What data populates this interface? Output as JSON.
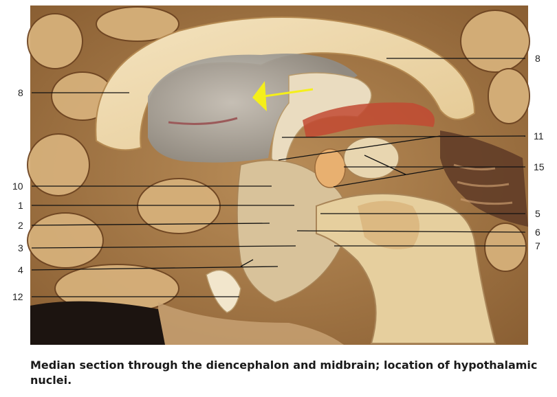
{
  "figure": {
    "labels_left": [
      "8",
      "10",
      "1",
      "2",
      "3",
      "4",
      "12"
    ],
    "labels_right": [
      "8",
      "11",
      "15",
      "5",
      "6",
      "7"
    ],
    "arrow_color": "#f5ef1a",
    "caption": "Median section through the diencephalon and midbrain; location of hypothalamic nuclei."
  }
}
